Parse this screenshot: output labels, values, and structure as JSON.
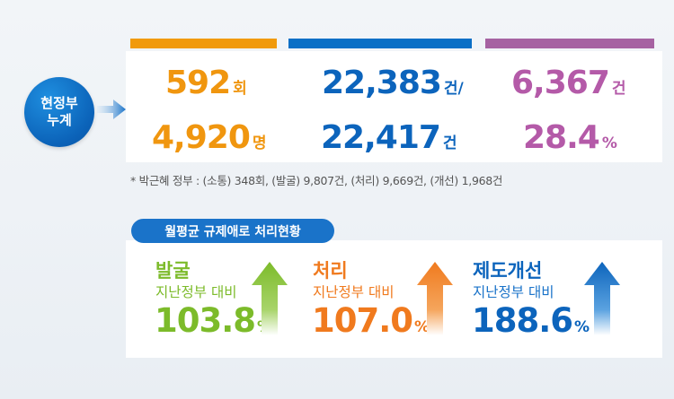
{
  "circle": {
    "line1": "현정부",
    "line2": "누계"
  },
  "stats": {
    "consult_count": {
      "value": "592",
      "unit": "회"
    },
    "consult_people": {
      "value": "4,920",
      "unit": "명"
    },
    "received": {
      "value": "22,383",
      "unit": "건/"
    },
    "processed": {
      "value": "22,417",
      "unit": "건"
    },
    "improved": {
      "value": "6,367",
      "unit": "건"
    },
    "improve_rate": {
      "value": "28.4",
      "unit": "%"
    }
  },
  "note": "* 박근혜 정부 : (소통) 348회, (발굴) 9,807건, (처리) 9,669건, (개선) 1,968건",
  "monthly": {
    "label": "월평균 규제애로 처리현황",
    "items": [
      {
        "title": "발굴",
        "subtitle": "지난정부 대비",
        "value": "103.8",
        "unit": "%",
        "color": "#7cbb2a"
      },
      {
        "title": "처리",
        "subtitle": "지난정부 대비",
        "value": "107.0",
        "unit": "%",
        "color": "#f07a1e"
      },
      {
        "title": "제도개선",
        "subtitle": "지난정부 대비",
        "value": "188.6",
        "unit": "%",
        "color": "#0c64bc"
      }
    ]
  },
  "colors": {
    "orange": "#f19a0b",
    "blue": "#0a6fc6",
    "purple": "#a662a2",
    "green": "#7cbb2a"
  }
}
